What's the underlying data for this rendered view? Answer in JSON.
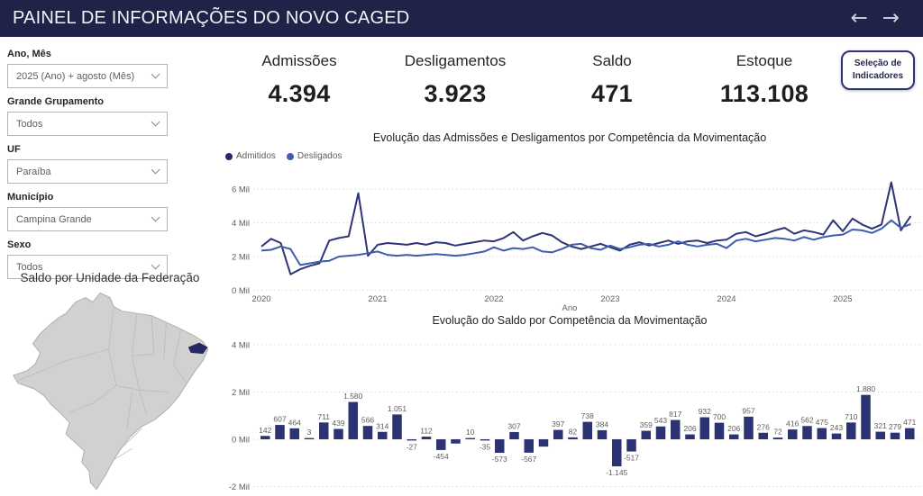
{
  "header": {
    "title": "PAINEL DE INFORMAÇÕES DO NOVO CAGED",
    "back_arrow": "←",
    "forward_arrow": "→"
  },
  "filters": [
    {
      "label": "Ano, Mês",
      "value": "2025 (Ano) + agosto (Mês)"
    },
    {
      "label": "Grande Grupamento",
      "value": "Todos"
    },
    {
      "label": "UF",
      "value": "Paraíba"
    },
    {
      "label": "Município",
      "value": "Campina Grande"
    },
    {
      "label": "Sexo",
      "value": "Todos"
    }
  ],
  "kpis": [
    {
      "label": "Admissões",
      "value": "4.394"
    },
    {
      "label": "Desligamentos",
      "value": "3.923"
    },
    {
      "label": "Saldo",
      "value": "471"
    },
    {
      "label": "Estoque",
      "value": "113.108"
    }
  ],
  "indicator_button": {
    "line1": "Seleção de",
    "line2": "Indicadores"
  },
  "map": {
    "title": "Saldo por Unidade da Federação",
    "highlight_state": "Paraíba",
    "fill_color": "#d2d1d0",
    "border_color": "#b3b1af",
    "highlight_color": "#252a63"
  },
  "colors": {
    "header_bg": "#1f2347",
    "accent_navy": "#2d3272",
    "line_admitidos": "#2e3476",
    "line_desligados": "#3e5dab",
    "bar_fill": "#2c3373",
    "axis_text": "#605e5c",
    "gridline": "#dcdad8"
  },
  "chart_data": [
    {
      "type": "line",
      "title": "Evolução das Admissões e Desligamentos por Competência da Movimentação",
      "xlabel": "Ano",
      "x_ticks": [
        "2020",
        "2021",
        "2022",
        "2023",
        "2024",
        "2025"
      ],
      "y_ticks": [
        "0 Mil",
        "2 Mil",
        "4 Mil",
        "6 Mil"
      ],
      "y_tick_values": [
        0,
        2000,
        4000,
        6000
      ],
      "ylim": [
        0,
        6500
      ],
      "legend_position": "top-left",
      "grid": true,
      "series": [
        {
          "name": "Admitidos",
          "color": "#2e3476",
          "values": [
            2600,
            3050,
            2800,
            950,
            1250,
            1450,
            1600,
            2950,
            3100,
            3200,
            5750,
            2050,
            2700,
            2800,
            2750,
            2700,
            2800,
            2700,
            2850,
            2800,
            2650,
            2750,
            2850,
            2950,
            2900,
            3100,
            3450,
            2950,
            3200,
            3400,
            3250,
            2850,
            2600,
            2450,
            2600,
            2750,
            2550,
            2350,
            2700,
            2850,
            2650,
            2800,
            2950,
            2750,
            2900,
            2950,
            2800,
            2950,
            3000,
            3350,
            3450,
            3200,
            3350,
            3550,
            3700,
            3350,
            3550,
            3450,
            3300,
            4150,
            3500,
            4250,
            3900,
            3650,
            3900,
            6400,
            3550,
            4394
          ]
        },
        {
          "name": "Desligados",
          "color": "#3e5dab",
          "values": [
            2350,
            2400,
            2600,
            2450,
            1500,
            1600,
            1700,
            1750,
            2000,
            2050,
            2100,
            2200,
            2300,
            2100,
            2050,
            2100,
            2050,
            2100,
            2150,
            2100,
            2050,
            2100,
            2200,
            2300,
            2550,
            2350,
            2500,
            2450,
            2550,
            2300,
            2250,
            2450,
            2700,
            2750,
            2500,
            2400,
            2650,
            2450,
            2550,
            2700,
            2750,
            2600,
            2700,
            2900,
            2700,
            2600,
            2700,
            2750,
            2500,
            2950,
            3050,
            2900,
            3000,
            3100,
            3050,
            2950,
            3150,
            3000,
            3150,
            3250,
            3300,
            3600,
            3550,
            3400,
            3650,
            4150,
            3700,
            3923
          ]
        }
      ]
    },
    {
      "type": "bar",
      "title": "Evolução do Saldo por Competência da Movimentação",
      "y_ticks": [
        "-2 Mil",
        "0 Mil",
        "2 Mil",
        "4 Mil"
      ],
      "y_tick_values": [
        -2000,
        0,
        2000,
        4000
      ],
      "ylim": [
        -2000,
        4000
      ],
      "grid": true,
      "bar_color": "#2c3373",
      "values": [
        142,
        607,
        464,
        3,
        711,
        439,
        1580,
        566,
        314,
        1051,
        -27,
        112,
        -454,
        -180,
        10,
        -35,
        -573,
        307,
        -567,
        -310,
        397,
        82,
        738,
        384,
        -1145,
        -517,
        359,
        543,
        817,
        206,
        932,
        700,
        206,
        957,
        276,
        72,
        416,
        562,
        475,
        243,
        710,
        1880,
        321,
        279,
        471
      ],
      "labels": [
        "142",
        "607",
        "464",
        "3",
        "711",
        "439",
        "1.580",
        "566",
        "314",
        "1.051",
        "-27",
        "112",
        "-454",
        "",
        "10",
        "-35",
        "-573",
        "307",
        "-567",
        "",
        "397",
        "82",
        "738",
        "384",
        "-1.145",
        "-517",
        "359",
        "543",
        "817",
        "206",
        "932",
        "700",
        "206",
        "957",
        "276",
        "72",
        "416",
        "562",
        "475",
        "243",
        "710",
        "1.880",
        "321",
        "279",
        "471"
      ]
    }
  ]
}
